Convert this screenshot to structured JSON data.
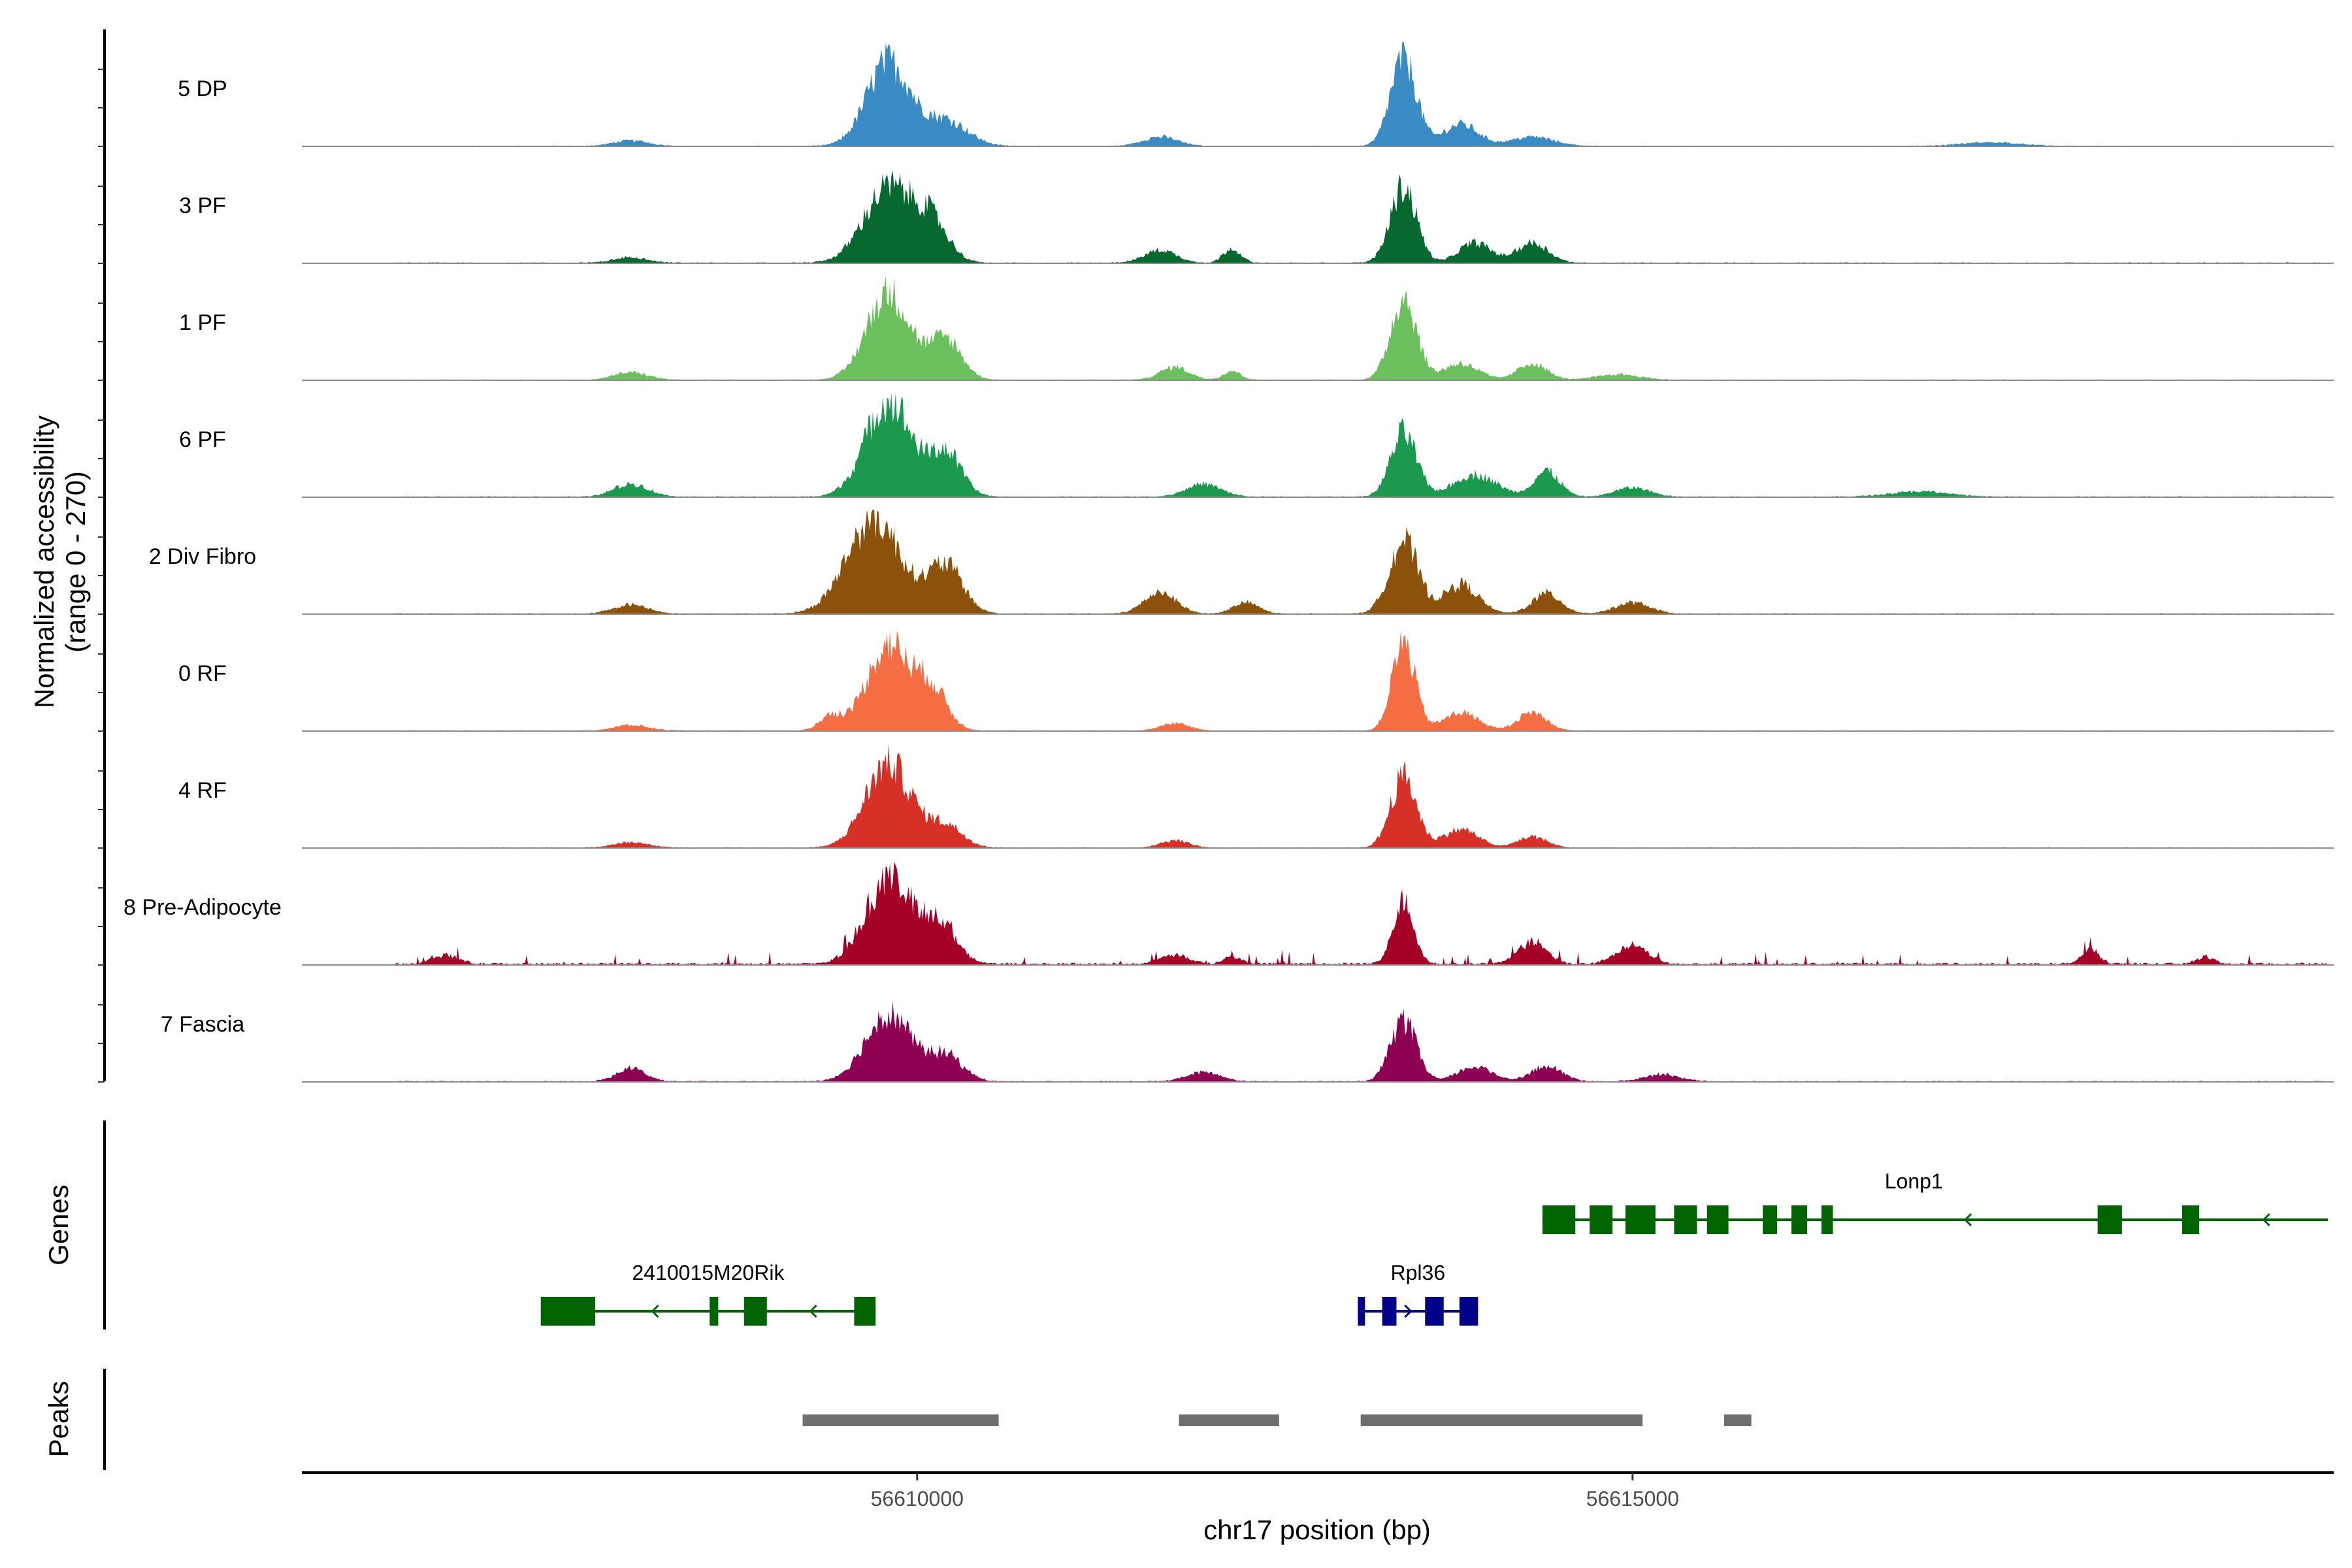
{
  "chart_data": {
    "type": "area",
    "title": "",
    "xlabel": "chr17 position (bp)",
    "ylabel": "Normalized accessibility\n(range 0 - 270)",
    "ylabel_lines": [
      "Normalized accessibility",
      "(range 0 - 270)"
    ],
    "ylim": [
      0,
      270
    ],
    "xlim": [
      56605700,
      56619900
    ],
    "x_ticks": [
      {
        "value": 56610000,
        "label": "56610000"
      },
      {
        "value": 56615000,
        "label": "56615000"
      }
    ],
    "panel_labels": {
      "genes": "Genes",
      "peaks": "Peaks"
    },
    "series": [
      {
        "name": "5 DP",
        "color": "#3A8BC3",
        "noise": 0.35,
        "peaks": [
          [
            56609800,
            230,
            150
          ],
          [
            56610200,
            70,
            150
          ],
          [
            56613400,
            240,
            90
          ],
          [
            56613800,
            60,
            120
          ],
          [
            56614300,
            25,
            150
          ],
          [
            56611700,
            25,
            120
          ],
          [
            56608000,
            15,
            120
          ],
          [
            56617500,
            10,
            200
          ]
        ]
      },
      {
        "name": "3 PF",
        "color": "#076830",
        "noise": 0.45,
        "peaks": [
          [
            56609800,
            205,
            170
          ],
          [
            56610100,
            100,
            120
          ],
          [
            56613400,
            210,
            90
          ],
          [
            56613900,
            55,
            110
          ],
          [
            56614300,
            55,
            110
          ],
          [
            56611700,
            35,
            110
          ],
          [
            56612200,
            40,
            60
          ],
          [
            56608000,
            15,
            120
          ]
        ]
      },
      {
        "name": "1 PF",
        "color": "#6BBF5D",
        "noise": 0.4,
        "peaks": [
          [
            56609800,
            240,
            150
          ],
          [
            56610200,
            110,
            110
          ],
          [
            56613400,
            225,
            90
          ],
          [
            56613800,
            45,
            120
          ],
          [
            56614300,
            45,
            100
          ],
          [
            56611800,
            35,
            100
          ],
          [
            56612200,
            25,
            60
          ],
          [
            56608000,
            20,
            120
          ],
          [
            56614900,
            15,
            150
          ]
        ]
      },
      {
        "name": "6 PF",
        "color": "#1B9A4F",
        "noise": 0.45,
        "peaks": [
          [
            56609800,
            265,
            160
          ],
          [
            56610200,
            120,
            110
          ],
          [
            56613400,
            175,
            90
          ],
          [
            56613900,
            60,
            150
          ],
          [
            56614400,
            70,
            90
          ],
          [
            56612000,
            35,
            120
          ],
          [
            56608000,
            35,
            120
          ],
          [
            56615000,
            25,
            120
          ],
          [
            56617000,
            15,
            200
          ]
        ]
      },
      {
        "name": "2 Div Fibro",
        "color": "#8C510A",
        "noise": 0.45,
        "peaks": [
          [
            56609700,
            260,
            190
          ],
          [
            56610200,
            130,
            120
          ],
          [
            56613400,
            200,
            100
          ],
          [
            56613800,
            80,
            120
          ],
          [
            56614400,
            55,
            100
          ],
          [
            56611700,
            60,
            110
          ],
          [
            56612300,
            30,
            90
          ],
          [
            56608000,
            25,
            120
          ],
          [
            56615000,
            30,
            120
          ]
        ]
      },
      {
        "name": "0 RF",
        "color": "#F46D43",
        "noise": 0.4,
        "peaks": [
          [
            56609800,
            235,
            150
          ],
          [
            56610100,
            110,
            110
          ],
          [
            56613400,
            240,
            80
          ],
          [
            56613800,
            50,
            120
          ],
          [
            56614300,
            50,
            100
          ],
          [
            56609400,
            40,
            80
          ],
          [
            56611800,
            20,
            100
          ],
          [
            56608000,
            15,
            120
          ]
        ]
      },
      {
        "name": "4 RF",
        "color": "#D73027",
        "noise": 0.4,
        "peaks": [
          [
            56609800,
            230,
            160
          ],
          [
            56610200,
            60,
            120
          ],
          [
            56613400,
            195,
            90
          ],
          [
            56613800,
            50,
            120
          ],
          [
            56614300,
            30,
            100
          ],
          [
            56611800,
            20,
            100
          ],
          [
            56608000,
            15,
            120
          ]
        ]
      },
      {
        "name": "8 Pre-Adipocyte",
        "color": "#A50026",
        "noise": 1.0,
        "peaks": [
          [
            56609800,
            230,
            160
          ],
          [
            56610150,
            110,
            120
          ],
          [
            56613400,
            175,
            70
          ],
          [
            56614300,
            60,
            100
          ],
          [
            56615000,
            50,
            110
          ],
          [
            56611800,
            25,
            100
          ],
          [
            56612200,
            20,
            60
          ],
          [
            56606700,
            25,
            90
          ],
          [
            56618200,
            40,
            60
          ],
          [
            56619000,
            20,
            60
          ]
        ]
      },
      {
        "name": "7 Fascia",
        "color": "#8E0152",
        "noise": 0.5,
        "peaks": [
          [
            56609800,
            185,
            160
          ],
          [
            56610200,
            70,
            120
          ],
          [
            56613400,
            165,
            90
          ],
          [
            56613900,
            40,
            120
          ],
          [
            56614400,
            40,
            110
          ],
          [
            56612000,
            25,
            120
          ],
          [
            56608000,
            35,
            100
          ],
          [
            56615200,
            20,
            120
          ]
        ]
      }
    ],
    "genes": [
      {
        "name": "Lonp1",
        "strand": "-",
        "color": "#006400",
        "row": 1,
        "start": 56614370,
        "end": 56619860,
        "exons": [
          [
            56614370,
            56614600
          ],
          [
            56614700,
            56614860
          ],
          [
            56614950,
            56615160
          ],
          [
            56615290,
            56615450
          ],
          [
            56615520,
            56615670
          ],
          [
            56615910,
            56616010
          ],
          [
            56616110,
            56616220
          ],
          [
            56616320,
            56616400
          ],
          [
            56618250,
            56618420
          ],
          [
            56618840,
            56618960
          ]
        ]
      },
      {
        "name": "2410015M20Rik",
        "strand": "-",
        "color": "#006400",
        "row": 2,
        "start": 56607370,
        "end": 56609710,
        "exons": [
          [
            56607370,
            56607750
          ],
          [
            56608550,
            56608610
          ],
          [
            56608790,
            56608950
          ],
          [
            56609560,
            56609710
          ]
        ]
      },
      {
        "name": "Rpl36",
        "strand": "+",
        "color": "#00008B",
        "row": 2,
        "start": 56613080,
        "end": 56613920,
        "exons": [
          [
            56613080,
            56613130
          ],
          [
            56613250,
            56613350
          ],
          [
            56613550,
            56613680
          ],
          [
            56613790,
            56613920
          ]
        ]
      }
    ],
    "peak_regions": [
      [
        56609200,
        56610570
      ],
      [
        56611830,
        56612530
      ],
      [
        56613100,
        56615070
      ],
      [
        56615640,
        56615830
      ]
    ]
  }
}
